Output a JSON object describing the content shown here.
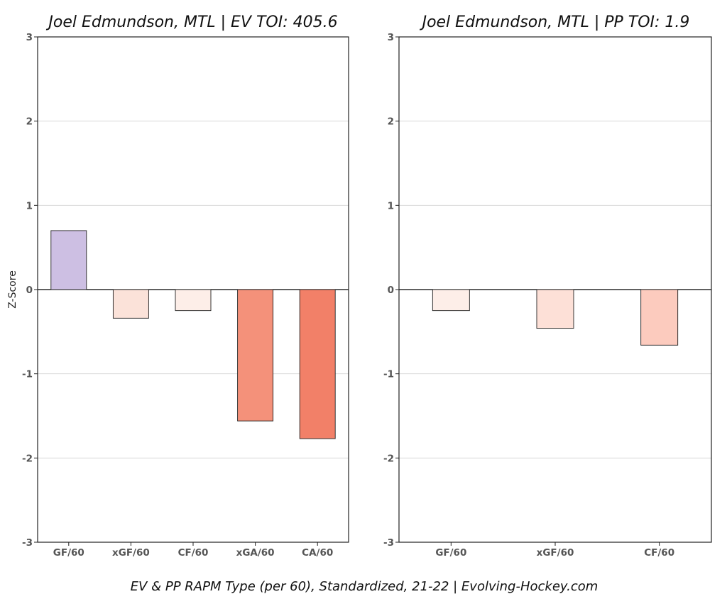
{
  "chart_data": [
    {
      "type": "bar",
      "title": "Joel Edmundson, MTL  |  EV TOI: 405.6",
      "ylabel": "Z-Score",
      "ylim": [
        -3,
        3
      ],
      "yticks": [
        3,
        2,
        1,
        0,
        -1,
        -2,
        -3
      ],
      "categories": [
        "GF/60",
        "xGF/60",
        "CF/60",
        "xGA/60",
        "CA/60"
      ],
      "values": [
        0.7,
        -0.34,
        -0.25,
        -1.56,
        -1.77
      ],
      "colors": [
        "#cdbfe3",
        "#fbe2d9",
        "#fdeee8",
        "#f4917a",
        "#f28068"
      ],
      "grid": true
    },
    {
      "type": "bar",
      "title": "Joel Edmundson, MTL  |  PP TOI: 1.9",
      "ylabel": "",
      "ylim": [
        -3,
        3
      ],
      "yticks": [
        3,
        2,
        1,
        0,
        -1,
        -2,
        -3
      ],
      "categories": [
        "GF/60",
        "xGF/60",
        "CF/60"
      ],
      "values": [
        -0.25,
        -0.46,
        -0.66
      ],
      "colors": [
        "#fdeee8",
        "#fde0d7",
        "#fccbbe"
      ],
      "grid": true
    }
  ],
  "caption": "EV & PP RAPM Type (per 60), Standardized, 21-22    |    Evolving-Hockey.com"
}
